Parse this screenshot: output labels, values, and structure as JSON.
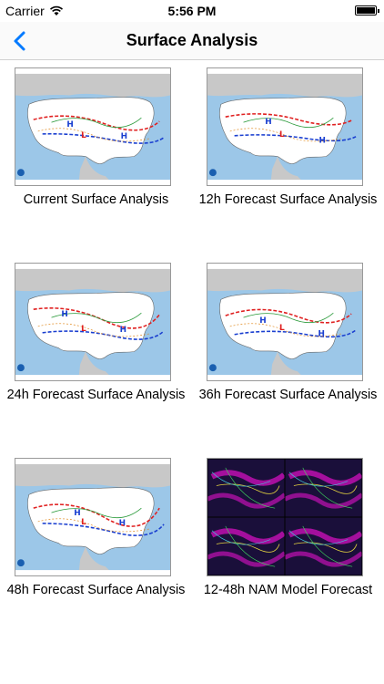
{
  "status_bar": {
    "carrier": "Carrier",
    "time": "5:56 PM"
  },
  "nav": {
    "title": "Surface Analysis"
  },
  "items": [
    {
      "caption": "Current Surface Analysis",
      "kind": "map"
    },
    {
      "caption": "12h Forecast Surface Analysis",
      "kind": "map"
    },
    {
      "caption": "24h Forecast Surface Analysis",
      "kind": "map"
    },
    {
      "caption": "36h Forecast Surface Analysis",
      "kind": "map"
    },
    {
      "caption": "48h Forecast Surface Analysis",
      "kind": "map"
    },
    {
      "caption": "12-48h NAM Model Forecast",
      "kind": "nam"
    }
  ],
  "colors": {
    "accent": "#007aff",
    "ocean": "#9cc7e8",
    "land": "#ffffff",
    "neighbor_land": "#c8c8c8",
    "nam_bg": "#1a0f3a",
    "nam_magenta": "#e010c8"
  }
}
